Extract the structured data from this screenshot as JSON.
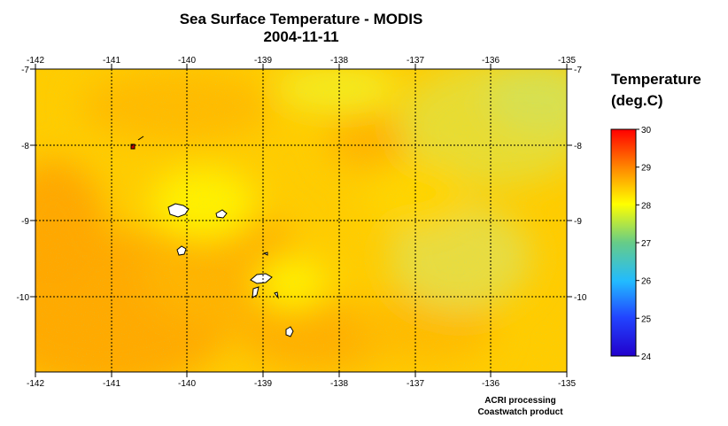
{
  "title": "Sea Surface Temperature - MODIS",
  "date": "2004-11-11",
  "legend": {
    "title_line1": "Temperature",
    "title_line2": "(deg.C)",
    "ticks": [
      "30",
      "29",
      "28",
      "27",
      "26",
      "25",
      "24"
    ],
    "range": [
      24,
      30
    ],
    "colors": [
      "#ff0000",
      "#ff8800",
      "#ffff00",
      "#66cc88",
      "#22bbff",
      "#2244ff",
      "#2200cc"
    ]
  },
  "credits": [
    "ACRI processing",
    "Coastwatch product"
  ],
  "colors": {
    "background": "#ffffff",
    "land": "#ffffff",
    "grid": "#000000"
  },
  "map": {
    "lon_ticks": [
      "-142",
      "-141",
      "-140",
      "-139",
      "-138",
      "-137",
      "-136",
      "-135"
    ],
    "lat_ticks": [
      "-7",
      "-8",
      "-9",
      "-10"
    ],
    "lon_range": [
      -142,
      -135
    ],
    "lat_range": [
      -11,
      -7
    ]
  },
  "chart_data": {
    "type": "heatmap",
    "title": "Sea Surface Temperature - MODIS",
    "subtitle": "2004-11-11",
    "colorbar_label": "Temperature (deg.C)",
    "colorbar_range": [
      24,
      30
    ],
    "x_range": [
      -142,
      -135
    ],
    "y_range": [
      -11,
      -7
    ],
    "grid": true
  }
}
